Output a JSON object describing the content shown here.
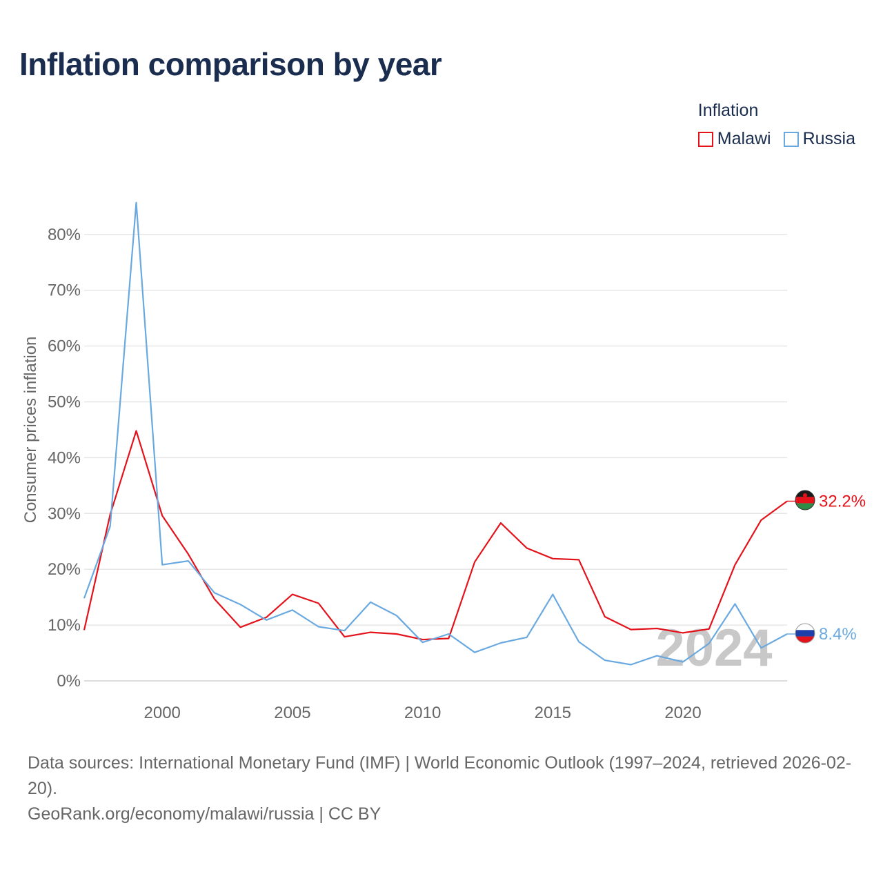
{
  "title": "Inflation comparison by year",
  "legend": {
    "title": "Inflation",
    "items": [
      {
        "label": "Malawi",
        "color": "#e3121b"
      },
      {
        "label": "Russia",
        "color": "#6aa9e0"
      }
    ]
  },
  "year_watermark": "2024",
  "footer": {
    "sources": "Data sources: International Monetary Fund (IMF) | World Economic Outlook (1997–2024, retrieved 2026-02-20).",
    "credit": "GeoRank.org/economy/malawi/russia | CC BY"
  },
  "chart_data": {
    "type": "line",
    "title": "Inflation comparison by year",
    "xlabel": "",
    "ylabel": "Consumer prices inflation",
    "x": [
      1997,
      1998,
      1999,
      2000,
      2001,
      2002,
      2003,
      2004,
      2005,
      2006,
      2007,
      2008,
      2009,
      2010,
      2011,
      2012,
      2013,
      2014,
      2015,
      2016,
      2017,
      2018,
      2019,
      2020,
      2021,
      2022,
      2023,
      2024
    ],
    "xlim": [
      1997,
      2024
    ],
    "ylim": [
      0,
      85.9
    ],
    "x_ticks": [
      2000,
      2005,
      2010,
      2015,
      2020
    ],
    "y_ticks": [
      0,
      10,
      20,
      30,
      40,
      50,
      60,
      70,
      80
    ],
    "y_tick_labels": [
      "0%",
      "10%",
      "20%",
      "30%",
      "40%",
      "50%",
      "60%",
      "70%",
      "80%"
    ],
    "grid": true,
    "series": [
      {
        "name": "Malawi",
        "color": "#e3121b",
        "end_label": "32.2%",
        "values": [
          9.1,
          29.8,
          44.8,
          29.6,
          22.7,
          14.7,
          9.6,
          11.4,
          15.5,
          13.9,
          7.9,
          8.7,
          8.4,
          7.4,
          7.6,
          21.3,
          28.3,
          23.8,
          21.9,
          21.7,
          11.5,
          9.2,
          9.4,
          8.6,
          9.3,
          20.8,
          28.8,
          32.2
        ]
      },
      {
        "name": "Russia",
        "color": "#6aa9e0",
        "end_label": "8.4%",
        "values": [
          14.8,
          27.7,
          85.7,
          20.8,
          21.5,
          15.8,
          13.7,
          10.9,
          12.7,
          9.7,
          9.0,
          14.1,
          11.7,
          6.9,
          8.4,
          5.1,
          6.8,
          7.8,
          15.5,
          7.0,
          3.7,
          2.9,
          4.5,
          3.4,
          6.7,
          13.8,
          5.9,
          8.4
        ]
      }
    ]
  }
}
